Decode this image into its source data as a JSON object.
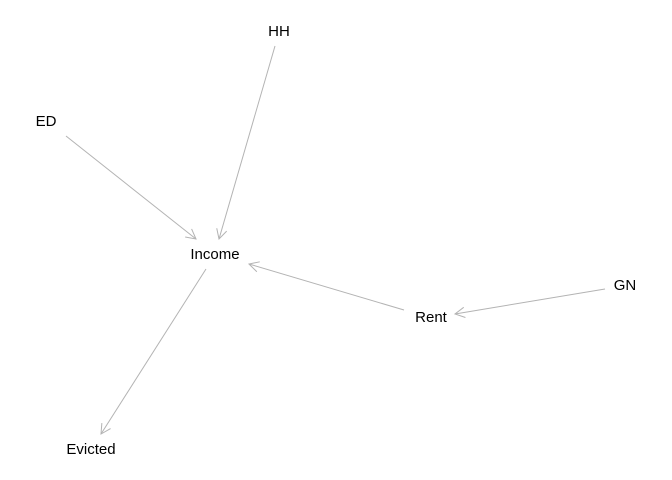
{
  "diagram": {
    "type": "directed-graph",
    "edge_color": "#b3b3b3",
    "label_color": "#000000",
    "background": "#ffffff",
    "nodes": [
      {
        "id": "HH",
        "label": "HH"
      },
      {
        "id": "ED",
        "label": "ED"
      },
      {
        "id": "Income",
        "label": "Income"
      },
      {
        "id": "Rent",
        "label": "Rent"
      },
      {
        "id": "GN",
        "label": "GN"
      },
      {
        "id": "Evicted",
        "label": "Evicted"
      }
    ],
    "edges": [
      {
        "from": "HH",
        "to": "Income"
      },
      {
        "from": "ED",
        "to": "Income"
      },
      {
        "from": "Rent",
        "to": "Income"
      },
      {
        "from": "GN",
        "to": "Rent"
      },
      {
        "from": "Income",
        "to": "Evicted"
      }
    ]
  }
}
